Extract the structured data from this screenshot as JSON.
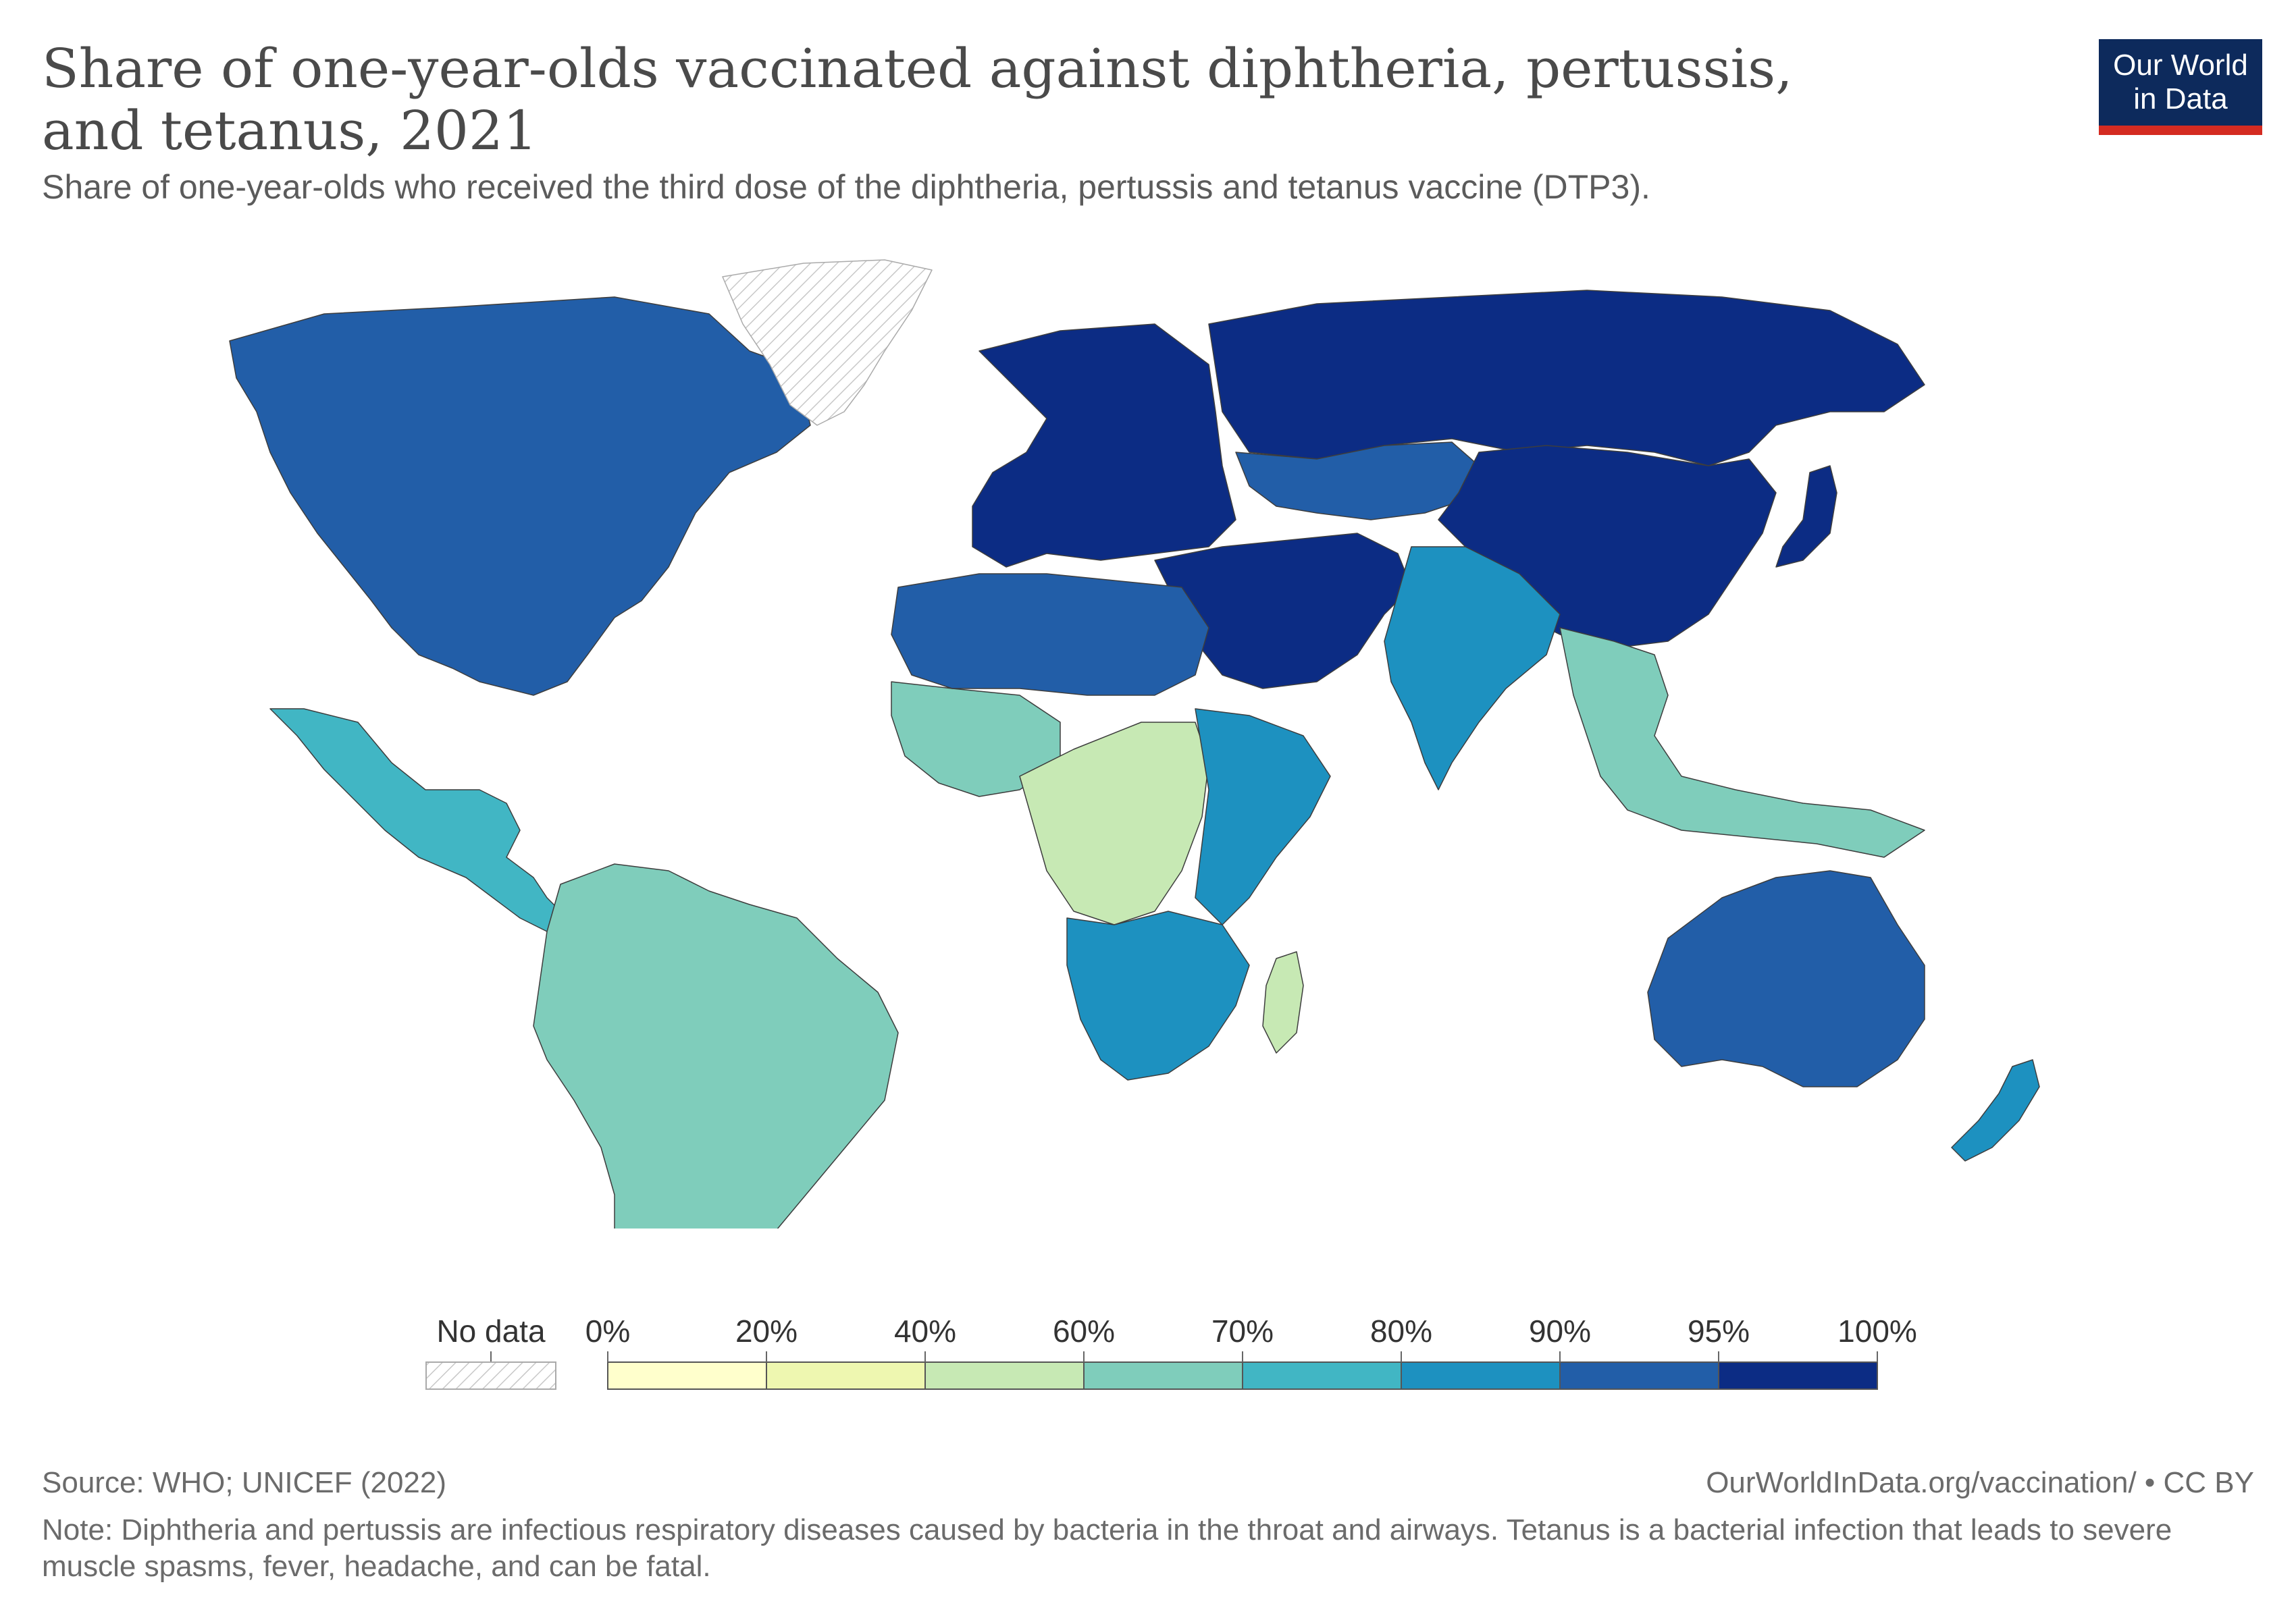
{
  "title": "Share of one-year-olds vaccinated against diphtheria, pertussis, and tetanus, 2021",
  "subtitle": "Share of one-year-olds who received the third dose of the diphtheria, pertussis and tetanus vaccine (DTP3).",
  "logo": {
    "line1": "Our World",
    "line2": "in Data",
    "bg_color": "#0d2a5c",
    "accent_color": "#d42b21"
  },
  "legend": {
    "no_data_label": "No data",
    "ticks": [
      "0%",
      "20%",
      "40%",
      "60%",
      "70%",
      "80%",
      "90%",
      "95%",
      "100%"
    ],
    "colors": [
      "#ffffcc",
      "#eef7b0",
      "#c7e9b4",
      "#7fcdbb",
      "#41b6c4",
      "#1d91c0",
      "#225ea8",
      "#0c2c84"
    ]
  },
  "source": "Source: WHO; UNICEF (2022)",
  "url": "OurWorldInData.org/vaccination/ • CC BY",
  "note": "Note: Diphtheria and pertussis are infectious respiratory diseases caused by bacteria in the throat and airways. Tetanus is a bacterial infection that leads to severe muscle spasms, fever, headache, and can be fatal.",
  "regions": [
    {
      "name": "North America",
      "bin": 6
    },
    {
      "name": "Mexico & Central America",
      "bin": 4
    },
    {
      "name": "South America",
      "bin": 3
    },
    {
      "name": "Greenland",
      "bin": -1
    },
    {
      "name": "Europe",
      "bin": 7
    },
    {
      "name": "Russia",
      "bin": 7
    },
    {
      "name": "Central Asia",
      "bin": 6
    },
    {
      "name": "China",
      "bin": 7
    },
    {
      "name": "Japan",
      "bin": 7
    },
    {
      "name": "Middle East",
      "bin": 7
    },
    {
      "name": "South Asia",
      "bin": 5
    },
    {
      "name": "Southeast Asia",
      "bin": 3
    },
    {
      "name": "West Africa",
      "bin": 3
    },
    {
      "name": "North Africa",
      "bin": 6
    },
    {
      "name": "Central Africa",
      "bin": 2
    },
    {
      "name": "East Africa",
      "bin": 5
    },
    {
      "name": "Southern Africa",
      "bin": 5
    },
    {
      "name": "Madagascar",
      "bin": 2
    },
    {
      "name": "Australia",
      "bin": 6
    },
    {
      "name": "New Zealand",
      "bin": 5
    }
  ]
}
